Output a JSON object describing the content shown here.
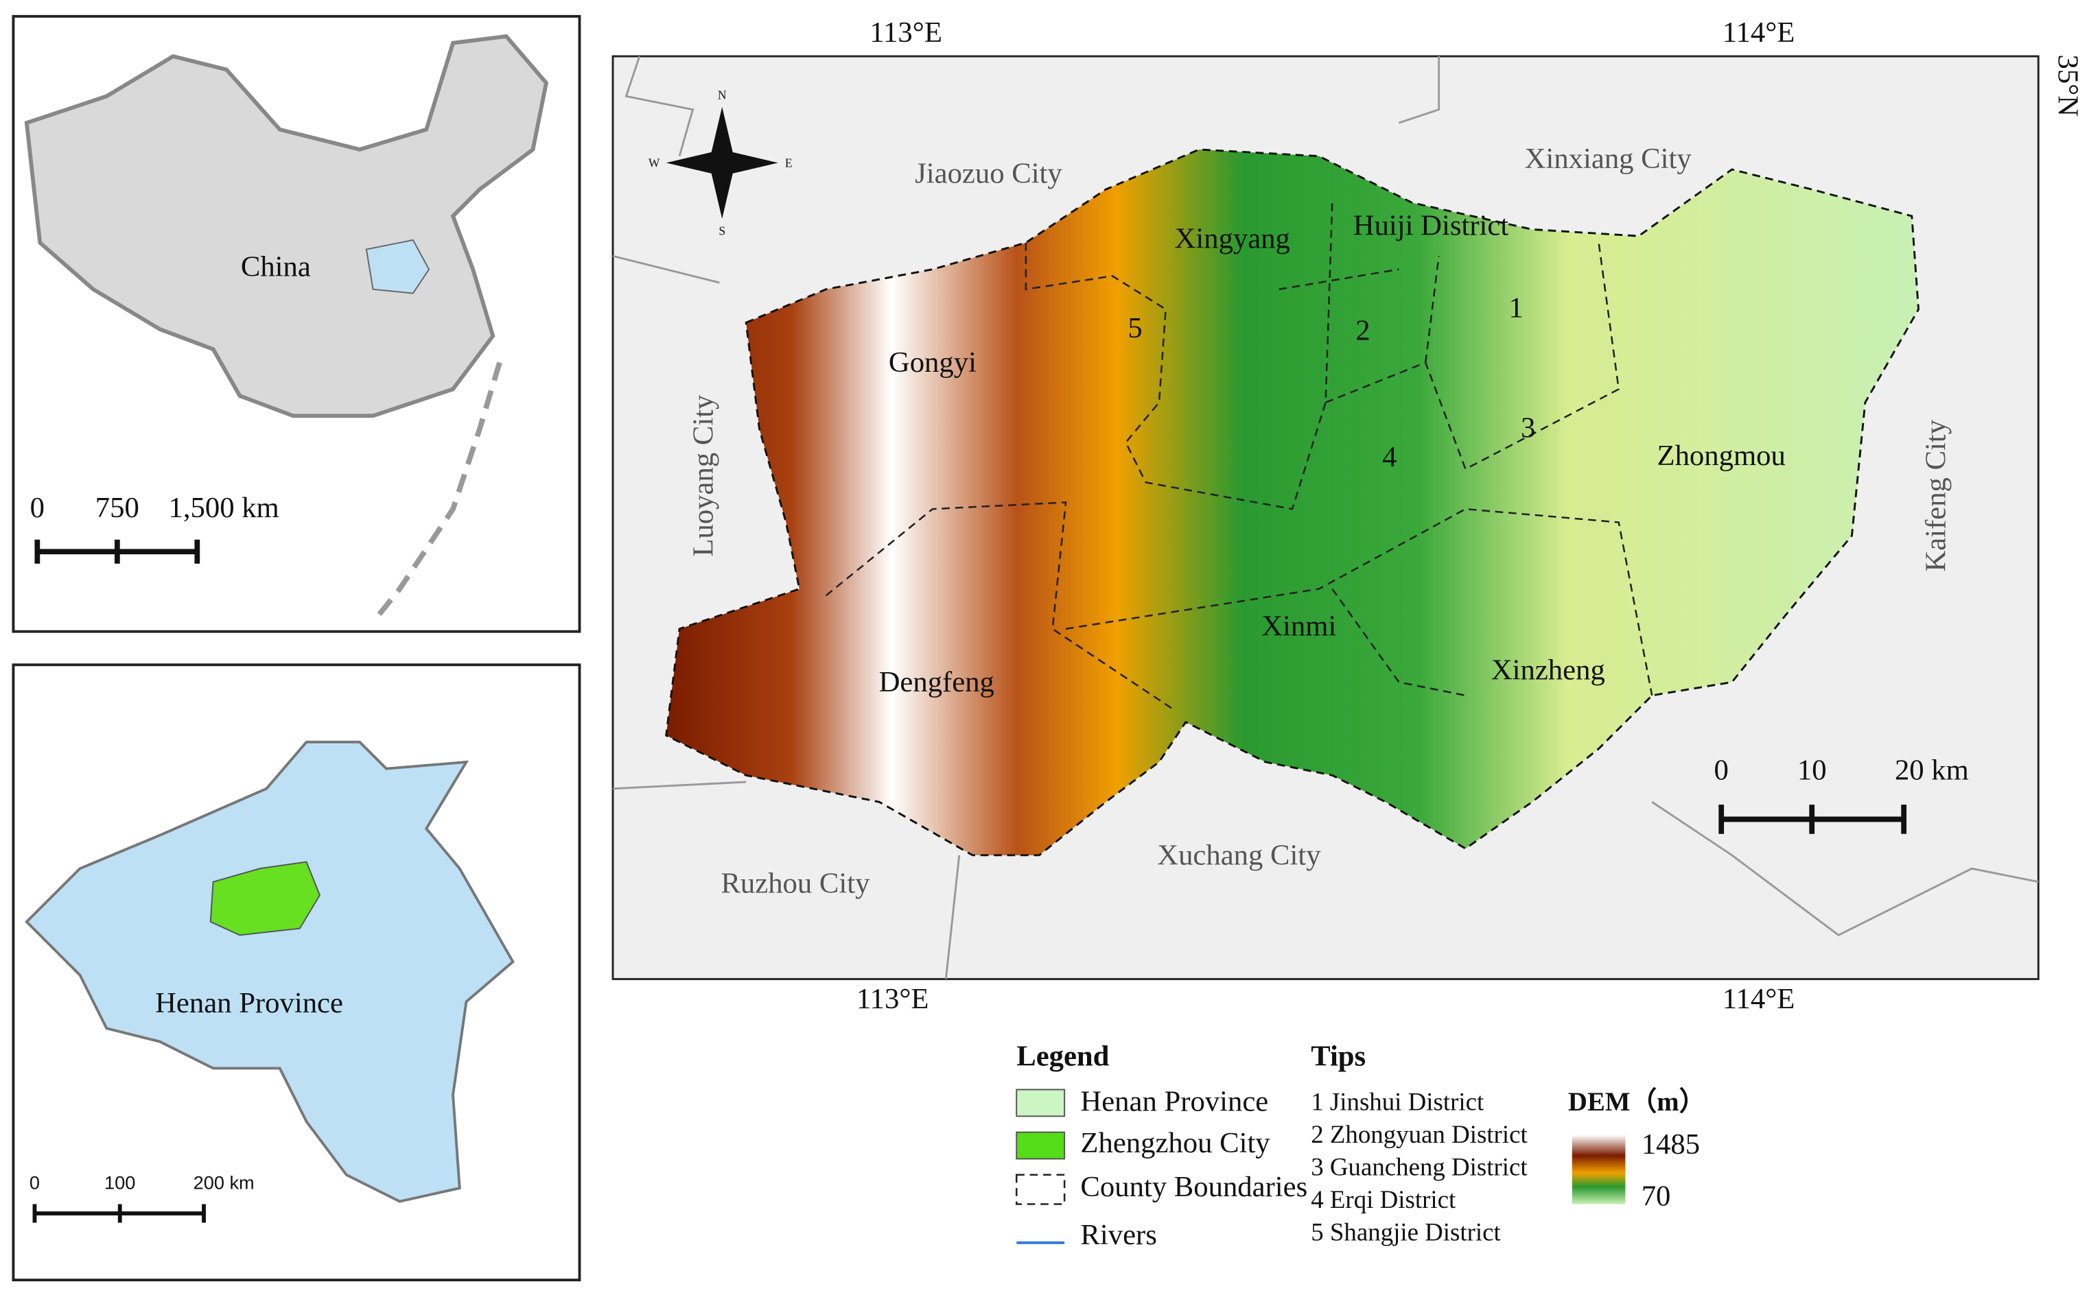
{
  "inset_china": {
    "label": "China",
    "scale": [
      "0",
      "750",
      "1,500 km"
    ]
  },
  "inset_henan": {
    "label": "Henan Province",
    "scale": [
      "0",
      "100",
      "200 km"
    ]
  },
  "main_map": {
    "graticule": {
      "top": [
        "113°E",
        "114°E"
      ],
      "bottom": [
        "113°E",
        "114°E"
      ],
      "right": "35°N"
    },
    "compass": [
      "N",
      "E",
      "S",
      "W"
    ],
    "neighbors": [
      "Jiaozuo City",
      "Xinxiang City",
      "Luoyang City",
      "Kaifeng City",
      "Ruzhou City",
      "Xuchang City"
    ],
    "districts": [
      "Xingyang",
      "Huiji District",
      "Gongyi",
      "Zhongmou",
      "Xinmi",
      "Dengfeng",
      "Xinzheng",
      "1",
      "2",
      "3",
      "4",
      "5"
    ],
    "scale": [
      "0",
      "10",
      "20 km"
    ]
  },
  "legend": {
    "title": "Legend",
    "items": [
      "Henan Province",
      "Zhengzhou City",
      "County Boundaries",
      "Rivers"
    ]
  },
  "tips": {
    "title": "Tips",
    "items": [
      "1 Jinshui District",
      "2 Zhongyuan District",
      "3 Guancheng District",
      "4 Erqi District",
      "5 Shangjie District"
    ]
  },
  "dem": {
    "title": "DEM（m）",
    "max": "1485",
    "min": "70"
  }
}
